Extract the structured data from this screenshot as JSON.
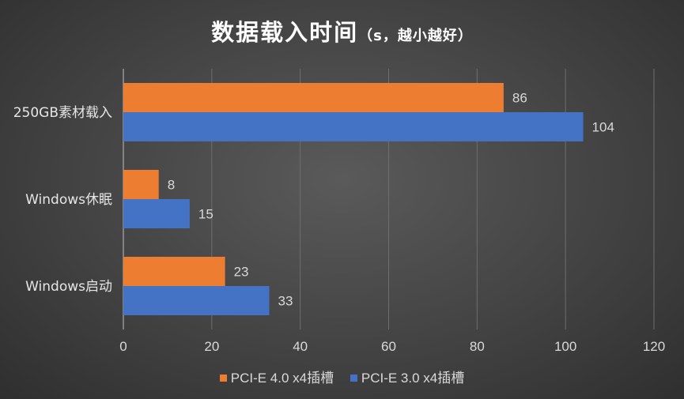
{
  "chart_data": {
    "type": "bar",
    "orientation": "horizontal",
    "title": "数据载入时间",
    "subtitle": "（s，越小越好）",
    "categories": [
      "250GB素材载入",
      "Windows休眠",
      "Windows启动"
    ],
    "series": [
      {
        "name": "PCI-E 4.0 x4插槽",
        "color": "#ed7d31",
        "values": [
          86,
          8,
          23
        ]
      },
      {
        "name": "PCI-E 3.0 x4插槽",
        "color": "#4472c4",
        "values": [
          104,
          15,
          33
        ]
      }
    ],
    "xlim": [
      0,
      120
    ],
    "x_ticks": [
      "0",
      "20",
      "40",
      "60",
      "80",
      "100",
      "120"
    ],
    "grid": "vertical",
    "legend_position": "bottom",
    "data_labels": true
  }
}
